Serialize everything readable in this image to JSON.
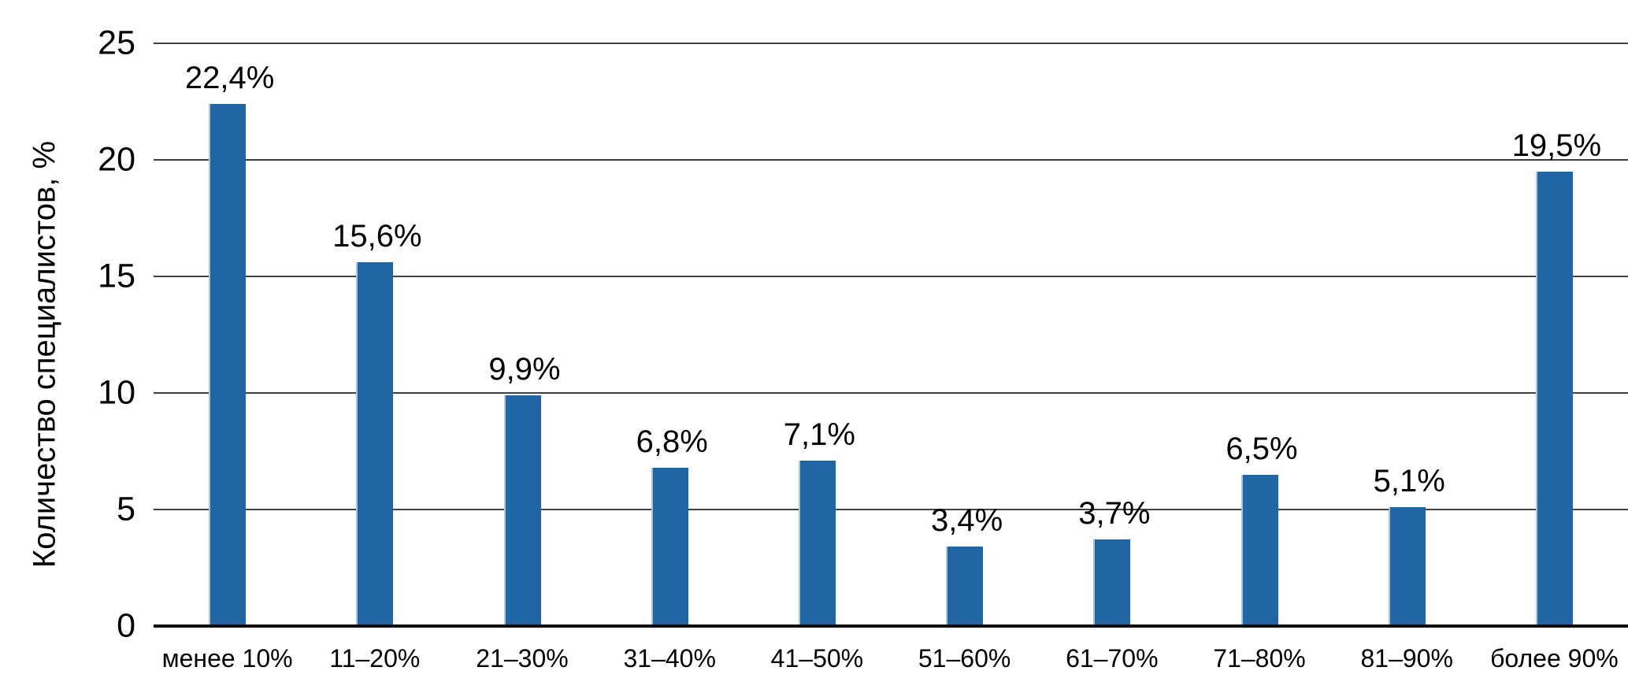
{
  "chart_data": {
    "type": "bar",
    "title": "",
    "xlabel": "",
    "ylabel": "Количество специалистов, %",
    "categories": [
      "менее 10%",
      "11–20%",
      "21–30%",
      "31–40%",
      "41–50%",
      "51–60%",
      "61–70%",
      "71–80%",
      "81–90%",
      "более 90%"
    ],
    "values": [
      22.4,
      15.6,
      9.9,
      6.8,
      7.1,
      3.4,
      3.7,
      6.5,
      5.1,
      19.5
    ],
    "value_labels": [
      "22,4%",
      "15,6%",
      "9,9%",
      "6,8%",
      "7,1%",
      "3,4%",
      "3,7%",
      "6,5%",
      "5,1%",
      "19,5%"
    ],
    "ylim": [
      0,
      25
    ],
    "yticks": [
      0,
      5,
      10,
      15,
      20,
      25
    ],
    "grid": "horizontal",
    "legend": "none",
    "bar_color": "#2065a4",
    "gridline_color": "#404040",
    "axis_color": "#0d0d0d",
    "text_color": "#000000"
  }
}
